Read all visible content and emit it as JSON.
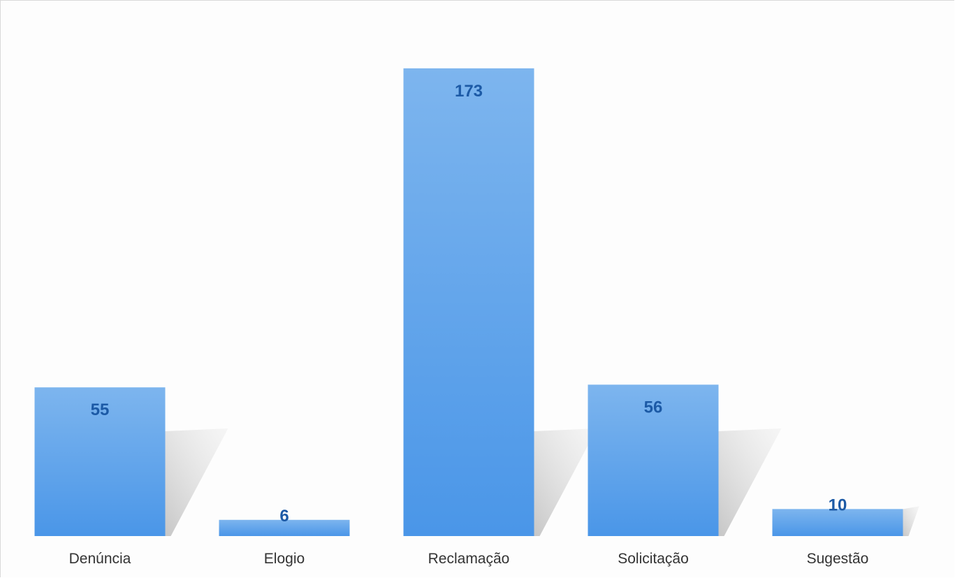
{
  "chart_data": {
    "type": "bar",
    "categories": [
      "Denúncia",
      "Elogio",
      "Reclamação",
      "Solicitação",
      "Sugestão"
    ],
    "values": [
      55,
      6,
      173,
      56,
      10
    ],
    "title": "",
    "xlabel": "",
    "ylabel": "",
    "ylim": [
      0,
      190
    ],
    "grid": false,
    "legend": "none",
    "data_labels": "inside-top",
    "colors": {
      "bar_top": "#7db5ee",
      "bar_bottom": "#4a96e8",
      "shadow": "#b8b8b8",
      "value_label": "#1c5aa6",
      "category_label": "#333333"
    }
  }
}
